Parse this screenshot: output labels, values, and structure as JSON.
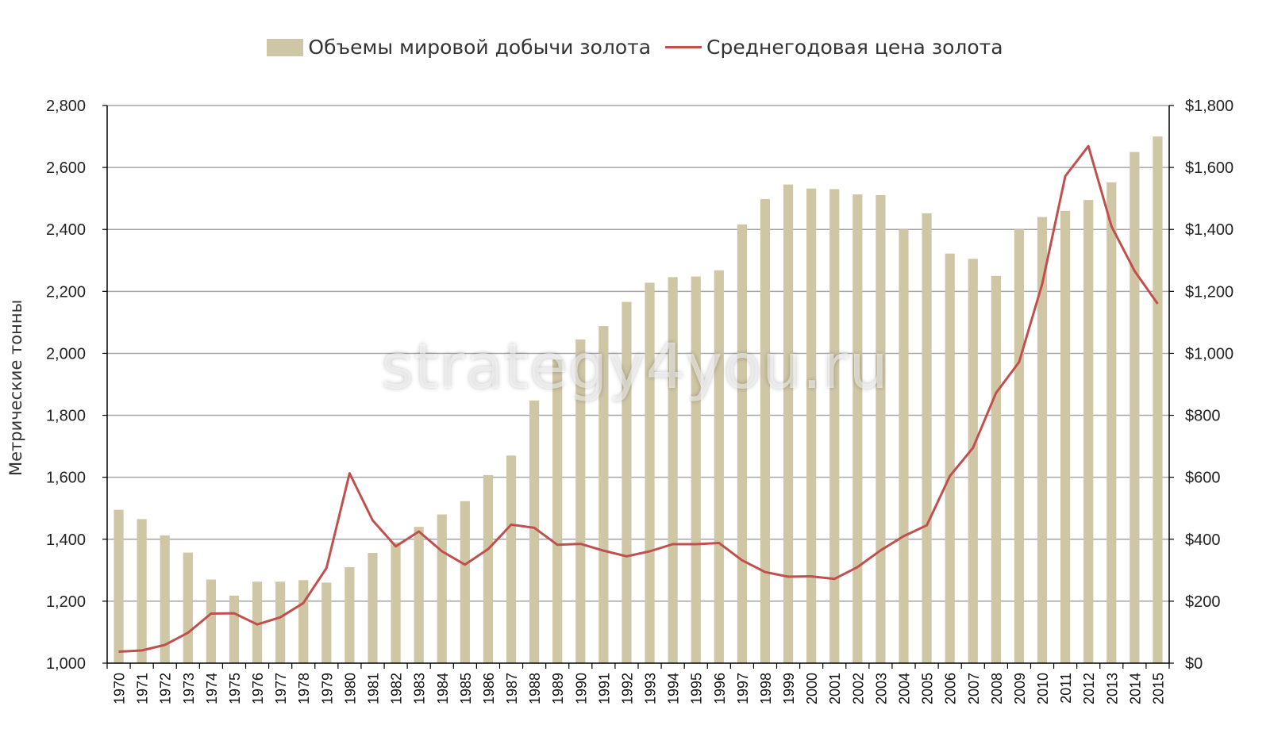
{
  "colors": {
    "bar": "#cfc6a6",
    "line": "#c0504d",
    "grid": "#a6a6a6",
    "axis": "#000000"
  },
  "chart_data": {
    "type": "bar",
    "categories": [
      "1970",
      "1971",
      "1972",
      "1973",
      "1974",
      "1975",
      "1976",
      "1977",
      "1978",
      "1979",
      "1980",
      "1981",
      "1982",
      "1983",
      "1984",
      "1985",
      "1986",
      "1987",
      "1988",
      "1989",
      "1990",
      "1991",
      "1992",
      "1993",
      "1994",
      "1995",
      "1996",
      "1997",
      "1998",
      "1999",
      "2000",
      "2001",
      "2002",
      "2003",
      "2004",
      "2005",
      "2006",
      "2007",
      "2008",
      "2009",
      "2010",
      "2011",
      "2012",
      "2013",
      "2014",
      "2015"
    ],
    "series": [
      {
        "name": "Объемы мировой добычи золота",
        "type": "bar",
        "axis": "left",
        "values": [
          1495,
          1465,
          1412,
          1357,
          1270,
          1218,
          1263,
          1263,
          1268,
          1260,
          1310,
          1356,
          1390,
          1440,
          1480,
          1523,
          1607,
          1670,
          1848,
          1980,
          2045,
          2088,
          2166,
          2228,
          2246,
          2248,
          2268,
          2416,
          2498,
          2545,
          2532,
          2530,
          2513,
          2511,
          2400,
          2452,
          2322,
          2305,
          2250,
          2400,
          2440,
          2460,
          2495,
          2552,
          2650,
          2700
        ]
      },
      {
        "name": "Среднегодовая цена золота",
        "type": "line",
        "axis": "right",
        "values": [
          37,
          41,
          59,
          98,
          160,
          161,
          125,
          148,
          194,
          307,
          613,
          461,
          377,
          425,
          361,
          318,
          368,
          447,
          437,
          382,
          385,
          363,
          345,
          361,
          384,
          384,
          388,
          332,
          294,
          279,
          280,
          272,
          310,
          364,
          410,
          445,
          604,
          695,
          872,
          972,
          1224,
          1572,
          1669,
          1410,
          1266,
          1160
        ]
      }
    ],
    "ylabel": "Метрические тонны",
    "ylim": [
      1000,
      2800
    ],
    "y_ticks": [
      "1,000",
      "1,200",
      "1,400",
      "1,600",
      "1,800",
      "2,000",
      "2,200",
      "2,400",
      "2,600",
      "2,800"
    ],
    "y_tick_values": [
      1000,
      1200,
      1400,
      1600,
      1800,
      2000,
      2200,
      2400,
      2600,
      2800
    ],
    "y2lim": [
      0,
      1800
    ],
    "y2_ticks": [
      "$0",
      "$200",
      "$400",
      "$600",
      "$800",
      "$1,000",
      "$1,200",
      "$1,400",
      "$1,600",
      "$1,800"
    ],
    "y2_tick_values": [
      0,
      200,
      400,
      600,
      800,
      1000,
      1200,
      1400,
      1600,
      1800
    ],
    "grid": true,
    "legend_position": "top-center"
  },
  "legend": {
    "bar_label": "Объемы мировой добычи золота",
    "line_label": "Среднегодовая цена золота"
  },
  "watermark": "strategy4you.ru"
}
